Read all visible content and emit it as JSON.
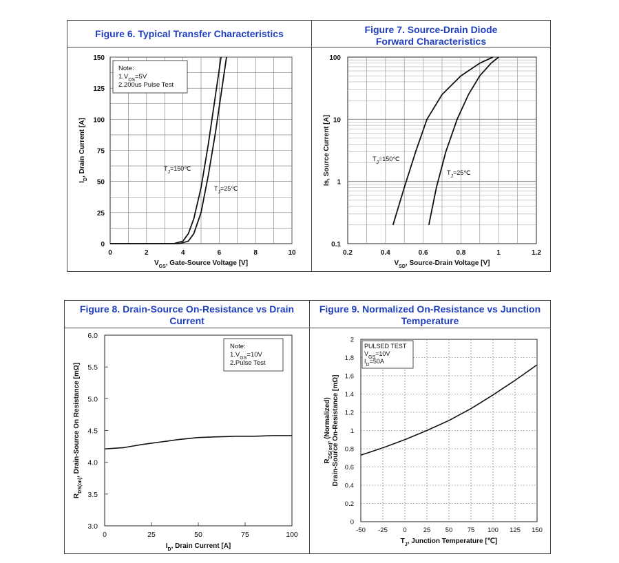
{
  "fig6": {
    "title": "Figure 6. Typical Transfer Characteristics",
    "note_lines": [
      "Note:",
      "1.V₂ₛ=5V",
      "2.200us Pulse Test"
    ],
    "chart_data": {
      "type": "line",
      "title": "Figure 6. Typical Transfer Characteristics",
      "xlabel": "VGS, Gate-Source Voltage [V]",
      "ylabel": "ID, Drain Current [A]",
      "xlim": [
        0,
        10
      ],
      "ylim": [
        0,
        150
      ],
      "xticks": [
        0,
        2,
        4,
        6,
        8,
        10
      ],
      "yticks": [
        0,
        25,
        50,
        75,
        100,
        125,
        150
      ],
      "grid": true,
      "annotations": [
        "TJ=150℃",
        "TJ=25℃"
      ],
      "series": [
        {
          "name": "TJ=150℃",
          "x": [
            0,
            3.5,
            4.0,
            4.3,
            4.6,
            5.0,
            5.4,
            5.8,
            6.1
          ],
          "y": [
            0,
            0,
            2,
            8,
            20,
            45,
            80,
            120,
            150
          ]
        },
        {
          "name": "TJ=25℃",
          "x": [
            0,
            3.8,
            4.3,
            4.6,
            5.0,
            5.4,
            5.8,
            6.1,
            6.4
          ],
          "y": [
            0,
            0,
            2,
            8,
            25,
            55,
            90,
            120,
            150
          ]
        }
      ]
    }
  },
  "fig7": {
    "title": "Figure 7. Source-Drain Diode Forward Characteristics",
    "chart_data": {
      "type": "line",
      "title": "Figure 7. Source-Drain Diode Forward Characteristics",
      "xlabel": "VSD, Source-Drain Voltage [V]",
      "ylabel": "Is, Source Current [A]",
      "xlim": [
        0.2,
        1.2
      ],
      "ylim": [
        0.1,
        100
      ],
      "yscale": "log",
      "xticks": [
        0.2,
        0.4,
        0.6,
        0.8,
        1,
        1.2
      ],
      "yticks": [
        0.1,
        1,
        10,
        100
      ],
      "grid": true,
      "annotations": [
        "TJ=150℃",
        "TJ=25℃"
      ],
      "series": [
        {
          "name": "TJ=150℃",
          "x": [
            0.44,
            0.5,
            0.56,
            0.62,
            0.7,
            0.8,
            0.9,
            0.97
          ],
          "y": [
            0.2,
            0.8,
            3,
            10,
            25,
            50,
            80,
            100
          ]
        },
        {
          "name": "TJ=25℃",
          "x": [
            0.63,
            0.67,
            0.72,
            0.78,
            0.84,
            0.9,
            0.96,
            1.0
          ],
          "y": [
            0.2,
            0.8,
            3,
            10,
            25,
            50,
            80,
            100
          ]
        }
      ]
    }
  },
  "fig8": {
    "title": "Figure 8. Drain-Source On-Resistance vs Drain Current",
    "note_lines": [
      "Note:",
      "1.VGS=10V",
      "2.Pulse Test"
    ],
    "chart_data": {
      "type": "line",
      "title": "Figure 8. Drain-Source On-Resistance vs Drain Current",
      "xlabel": "ID, Drain Current [A]",
      "ylabel": "RDS(on), Drain-Source On Resistance [mΩ]",
      "xlim": [
        0,
        100
      ],
      "ylim": [
        3.0,
        6.0
      ],
      "xticks": [
        0,
        25,
        50,
        75,
        100
      ],
      "yticks": [
        3.0,
        3.5,
        4.0,
        4.5,
        5.0,
        5.5,
        6.0
      ],
      "grid": false,
      "series": [
        {
          "name": "",
          "x": [
            0,
            10,
            20,
            30,
            40,
            50,
            60,
            70,
            80,
            90,
            100
          ],
          "y": [
            4.21,
            4.23,
            4.28,
            4.32,
            4.36,
            4.39,
            4.4,
            4.41,
            4.41,
            4.42,
            4.42
          ]
        }
      ]
    }
  },
  "fig9": {
    "title": "Figure 9. Normalized On-Resistance vs Junction Temperature",
    "note_lines": [
      "PULSED TEST",
      "VGS=10V",
      "ID=50A"
    ],
    "chart_data": {
      "type": "line",
      "title": "Figure 9. Normalized On-Resistance vs Junction Temperature",
      "xlabel": "TJ, Junction Temperature [℃]",
      "ylabel": "RDS(on), (Normalized) Drain-Source On-Resistance [mΩ]",
      "xlim": [
        -50,
        150
      ],
      "ylim": [
        0,
        2
      ],
      "xticks": [
        -50,
        -25,
        0,
        25,
        50,
        75,
        100,
        125,
        150
      ],
      "yticks": [
        0,
        0.2,
        0.4,
        0.6,
        0.8,
        1,
        1.2,
        1.4,
        1.6,
        1.8,
        2
      ],
      "grid": true,
      "series": [
        {
          "name": "",
          "x": [
            -50,
            -25,
            0,
            25,
            50,
            75,
            100,
            125,
            150
          ],
          "y": [
            0.73,
            0.81,
            0.9,
            1.0,
            1.11,
            1.24,
            1.39,
            1.55,
            1.72
          ]
        }
      ]
    }
  }
}
